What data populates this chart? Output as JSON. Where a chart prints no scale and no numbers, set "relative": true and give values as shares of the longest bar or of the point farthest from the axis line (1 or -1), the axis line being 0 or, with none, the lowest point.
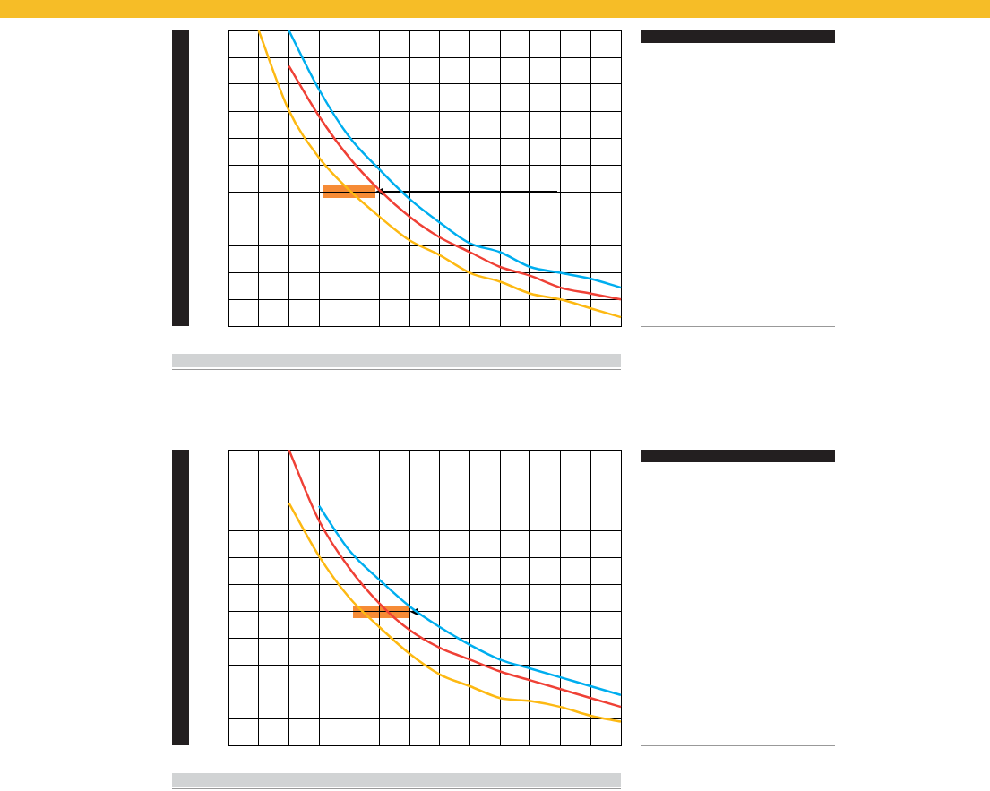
{
  "chart_data": [
    {
      "type": "line",
      "relative": true,
      "grid": true,
      "legend": false,
      "tick_labels": false,
      "marker": "none",
      "line_style": "solid",
      "categories": [
        null,
        null,
        null,
        null,
        null,
        null,
        null,
        null,
        null,
        null,
        null,
        null,
        null,
        null
      ],
      "series": [
        {
          "color": "#fdb913",
          "values": [
            null,
            1,
            0.73,
            0.57,
            0.46,
            0.37,
            0.29,
            0.24,
            0.18,
            0.15,
            0.11,
            0.09,
            0.06,
            0.03
          ]
        },
        {
          "color": "#ef4136",
          "values": [
            null,
            null,
            0.88,
            0.71,
            0.57,
            0.46,
            0.37,
            0.3,
            0.25,
            0.2,
            0.17,
            0.13,
            0.11,
            0.09
          ]
        },
        {
          "color": "#00aeef",
          "values": [
            null,
            null,
            1,
            0.8,
            0.64,
            0.53,
            0.43,
            0.35,
            0.28,
            0.25,
            0.2,
            0.18,
            0.16,
            0.13
          ]
        }
      ]
    },
    {
      "type": "line",
      "relative": true,
      "grid": true,
      "legend": false,
      "tick_labels": false,
      "marker": "none",
      "line_style": "solid",
      "categories": [
        null,
        null,
        null,
        null,
        null,
        null,
        null,
        null,
        null,
        null,
        null,
        null,
        null,
        null
      ],
      "series": [
        {
          "color": "#fdb913",
          "values": [
            null,
            null,
            0.82,
            0.64,
            0.5,
            0.4,
            0.31,
            0.24,
            0.2,
            0.16,
            0.15,
            0.13,
            0.1,
            0.08
          ]
        },
        {
          "color": "#ef4136",
          "values": [
            null,
            null,
            1,
            0.76,
            0.6,
            0.48,
            0.39,
            0.33,
            0.29,
            0.25,
            0.22,
            0.19,
            0.16,
            0.13
          ]
        },
        {
          "color": "#00aeef",
          "values": [
            null,
            null,
            null,
            0.81,
            0.66,
            0.56,
            0.47,
            0.4,
            0.34,
            0.29,
            0.26,
            0.23,
            0.2,
            0.17
          ]
        }
      ]
    }
  ]
}
